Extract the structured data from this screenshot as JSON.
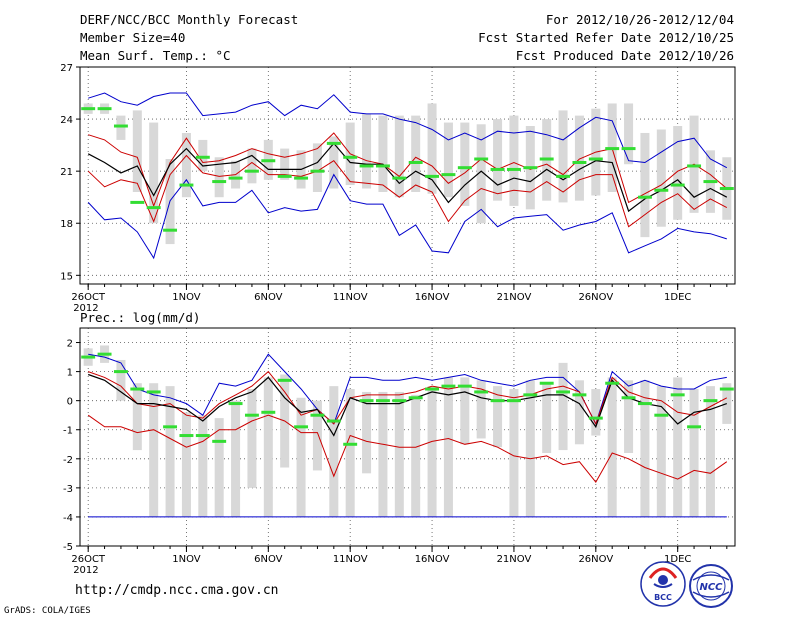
{
  "header": {
    "title": "DERF/NCC/BCC Monthly Forecast",
    "member": "Member Size=40",
    "variable": "Mean Surf. Temp.: °C",
    "period": "For 2012/10/26-2012/12/04",
    "started": "Fcst Started Refer Date 2012/10/25",
    "produced": "Fcst Produced Date 2012/10/26"
  },
  "footer": {
    "url": "http://cmdp.ncc.cma.gov.cn",
    "grads": "GrADS: COLA/IGES",
    "logo_bcc": "BCC",
    "logo_ncc": "NCC"
  },
  "colors": {
    "box": "#d8d8d8",
    "median": "#33dd33",
    "envelope": "#0000cc",
    "spread": "#cc0000",
    "mean": "#000000",
    "grid": "#555555"
  },
  "chart_data": [
    {
      "type": "box",
      "name": "temperature",
      "ylabel": "Mean Surf. Temp.: °C",
      "ylim": [
        14.5,
        27
      ],
      "yticks": [
        15,
        18,
        21,
        24,
        27
      ],
      "xlim": [
        0.5,
        40.5
      ],
      "xticks": [
        {
          "day": 1,
          "label": "26OCT",
          "sub": "2012"
        },
        {
          "day": 7,
          "label": "1NOV"
        },
        {
          "day": 12,
          "label": "6NOV"
        },
        {
          "day": 17,
          "label": "11NOV"
        },
        {
          "day": 22,
          "label": "16NOV"
        },
        {
          "day": 27,
          "label": "21NOV"
        },
        {
          "day": 32,
          "label": "26NOV"
        },
        {
          "day": 37,
          "label": "1DEC"
        }
      ],
      "days": [
        1,
        2,
        3,
        4,
        5,
        6,
        7,
        8,
        9,
        10,
        11,
        12,
        13,
        14,
        15,
        16,
        17,
        18,
        19,
        20,
        21,
        22,
        23,
        24,
        25,
        26,
        27,
        28,
        29,
        30,
        31,
        32,
        33,
        34,
        35,
        36,
        37,
        38,
        39,
        40
      ],
      "box_low": [
        24.3,
        24.3,
        22.8,
        19.8,
        18.0,
        16.8,
        19.5,
        21.0,
        19.5,
        20.0,
        20.3,
        20.5,
        20.5,
        20.0,
        19.8,
        20.0,
        20.2,
        20.0,
        19.8,
        19.5,
        19.8,
        19.7,
        19.5,
        19.0,
        18.0,
        19.3,
        19.0,
        18.8,
        19.3,
        19.2,
        19.3,
        19.6,
        19.8,
        21.4,
        17.2,
        17.8,
        18.2,
        18.6,
        18.6,
        18.2
      ],
      "box_high": [
        24.9,
        24.9,
        24.2,
        24.5,
        23.8,
        21.7,
        23.2,
        22.8,
        21.8,
        21.6,
        22.3,
        22.8,
        22.3,
        22.2,
        22.6,
        23.0,
        23.8,
        24.3,
        24.2,
        24.2,
        24.2,
        24.9,
        23.8,
        23.8,
        23.7,
        24.0,
        24.2,
        23.6,
        24.0,
        24.5,
        24.2,
        24.6,
        24.9,
        24.9,
        23.2,
        23.4,
        23.6,
        24.2,
        22.2,
        21.8
      ],
      "median": [
        24.6,
        24.6,
        23.6,
        19.2,
        18.9,
        17.6,
        20.2,
        21.8,
        20.4,
        20.6,
        21.0,
        21.6,
        20.7,
        20.6,
        21.0,
        22.6,
        21.8,
        21.3,
        21.3,
        20.6,
        21.5,
        20.7,
        20.8,
        21.2,
        21.7,
        21.1,
        21.1,
        21.2,
        21.7,
        20.7,
        21.5,
        21.7,
        22.3,
        22.3,
        19.5,
        19.9,
        20.2,
        21.3,
        20.4,
        20.0
      ],
      "envelope_high": [
        25.2,
        25.5,
        25.0,
        24.8,
        25.3,
        25.5,
        25.5,
        24.2,
        24.3,
        24.4,
        24.8,
        25.0,
        24.2,
        24.8,
        24.6,
        25.4,
        24.4,
        24.3,
        24.3,
        24.0,
        23.8,
        23.4,
        22.8,
        23.2,
        22.8,
        23.3,
        23.2,
        23.3,
        23.1,
        22.8,
        23.5,
        24.1,
        23.9,
        21.6,
        21.5,
        22.1,
        22.7,
        22.9,
        21.7,
        21.2
      ],
      "spread_high": [
        23.1,
        22.8,
        22.1,
        21.8,
        19.0,
        21.5,
        22.9,
        21.5,
        21.6,
        21.9,
        22.3,
        22.0,
        21.8,
        22.0,
        22.3,
        23.2,
        22.0,
        21.6,
        21.4,
        20.7,
        21.8,
        21.3,
        20.3,
        20.9,
        21.7,
        21.1,
        21.5,
        21.1,
        21.4,
        20.8,
        21.7,
        22.1,
        22.3,
        19.2,
        19.7,
        20.2,
        21.0,
        21.4,
        20.8,
        20.0
      ],
      "mean": [
        22.0,
        21.5,
        20.9,
        21.3,
        19.6,
        21.4,
        22.3,
        21.3,
        21.4,
        21.5,
        21.9,
        21.1,
        21.1,
        21.1,
        21.5,
        22.6,
        21.5,
        21.4,
        21.4,
        20.3,
        21.0,
        20.5,
        19.2,
        20.2,
        21.0,
        20.2,
        20.6,
        20.4,
        21.1,
        20.5,
        21.1,
        21.6,
        21.5,
        18.7,
        19.4,
        19.9,
        20.5,
        19.5,
        20.0,
        19.5
      ],
      "spread_low": [
        21.0,
        20.1,
        20.5,
        20.3,
        18.1,
        20.8,
        21.9,
        20.9,
        20.7,
        20.8,
        21.5,
        20.8,
        20.8,
        20.7,
        21.0,
        21.6,
        20.4,
        20.3,
        20.2,
        19.5,
        20.2,
        19.8,
        18.1,
        19.3,
        20.0,
        19.7,
        19.9,
        19.8,
        20.4,
        19.8,
        20.5,
        20.8,
        20.8,
        17.8,
        18.5,
        19.2,
        19.7,
        18.8,
        19.4,
        18.9
      ],
      "envelope_low": [
        19.2,
        18.2,
        18.3,
        17.5,
        16.0,
        19.3,
        20.5,
        19.0,
        19.2,
        19.2,
        19.9,
        18.6,
        18.9,
        18.7,
        18.8,
        20.8,
        19.3,
        19.1,
        19.1,
        17.3,
        17.9,
        16.4,
        16.3,
        18.1,
        18.8,
        17.8,
        18.3,
        18.4,
        18.5,
        17.6,
        17.9,
        18.1,
        18.6,
        16.3,
        16.7,
        17.1,
        17.7,
        17.5,
        17.4,
        17.1
      ]
    },
    {
      "type": "box",
      "name": "precipitation",
      "ylabel": "Prec.: log(mm/d)",
      "ylim": [
        -5,
        2.5
      ],
      "yticks": [
        -5,
        -4,
        -3,
        -2,
        -1,
        0,
        1,
        2
      ],
      "xlim": [
        0.5,
        40.5
      ],
      "xticks": [
        {
          "day": 1,
          "label": "26OCT",
          "sub": "2012"
        },
        {
          "day": 7,
          "label": "1NOV"
        },
        {
          "day": 12,
          "label": "6NOV"
        },
        {
          "day": 17,
          "label": "11NOV"
        },
        {
          "day": 22,
          "label": "16NOV"
        },
        {
          "day": 27,
          "label": "21NOV"
        },
        {
          "day": 32,
          "label": "26NOV"
        },
        {
          "day": 37,
          "label": "1DEC"
        }
      ],
      "days": [
        1,
        2,
        3,
        4,
        5,
        6,
        7,
        8,
        9,
        10,
        11,
        12,
        13,
        14,
        15,
        16,
        17,
        18,
        19,
        20,
        21,
        22,
        23,
        24,
        25,
        26,
        27,
        28,
        29,
        30,
        31,
        32,
        33,
        34,
        35,
        36,
        37,
        38,
        39,
        40
      ],
      "box_low": [
        1.2,
        1.3,
        0.0,
        -1.7,
        -4.0,
        -4.0,
        -4.0,
        -4.0,
        -4.0,
        -4.0,
        -3.0,
        -4.0,
        -2.3,
        -4.0,
        -2.4,
        -4.0,
        -4.0,
        -2.5,
        -4.0,
        -4.0,
        -4.0,
        -4.0,
        -4.0,
        -1.5,
        -1.3,
        -1.6,
        -4.0,
        -4.0,
        -1.8,
        -1.7,
        -1.5,
        -1.2,
        -4.0,
        -1.8,
        -4.0,
        -4.0,
        -4.0,
        -4.0,
        -4.0,
        -0.8
      ],
      "box_high": [
        1.8,
        1.9,
        1.4,
        0.6,
        0.6,
        0.5,
        -0.4,
        -0.5,
        -0.6,
        0.0,
        0.4,
        0.8,
        0.9,
        0.1,
        0.0,
        0.5,
        0.4,
        0.3,
        0.3,
        0.3,
        0.2,
        0.5,
        0.8,
        0.8,
        0.7,
        0.5,
        0.4,
        0.7,
        0.6,
        1.3,
        0.7,
        0.4,
        0.8,
        0.7,
        0.7,
        0.5,
        0.8,
        0.4,
        0.5,
        0.6
      ],
      "median": [
        1.5,
        1.6,
        1.0,
        0.4,
        0.3,
        -0.9,
        -1.2,
        -1.2,
        -1.4,
        -0.1,
        -0.5,
        -0.4,
        0.7,
        -0.9,
        -0.5,
        -0.7,
        -1.5,
        0.0,
        0.0,
        0.0,
        0.1,
        0.4,
        0.5,
        0.5,
        0.3,
        0.0,
        0.0,
        0.2,
        0.6,
        0.3,
        0.2,
        -0.6,
        0.6,
        0.1,
        -0.1,
        -0.5,
        0.2,
        -0.9,
        0.0,
        0.4
      ],
      "envelope_high": [
        1.6,
        1.5,
        1.3,
        0.4,
        0.2,
        0.1,
        -0.1,
        -0.5,
        0.6,
        0.5,
        0.7,
        1.6,
        1.0,
        0.4,
        -0.3,
        -0.8,
        0.8,
        0.8,
        0.7,
        0.7,
        0.8,
        0.7,
        0.8,
        0.9,
        0.7,
        0.6,
        0.5,
        0.7,
        0.8,
        0.8,
        0.3,
        -0.8,
        1.0,
        0.5,
        0.7,
        0.5,
        0.4,
        0.4,
        0.7,
        0.8
      ],
      "spread_high": [
        1.0,
        0.8,
        0.5,
        -0.1,
        -0.2,
        -0.1,
        -0.5,
        -0.6,
        -0.1,
        0.2,
        0.5,
        1.0,
        0.3,
        -0.5,
        -0.3,
        -0.8,
        0.1,
        0.2,
        0.2,
        0.2,
        0.3,
        0.5,
        0.4,
        0.5,
        0.4,
        0.2,
        0.1,
        0.2,
        0.4,
        0.5,
        0.3,
        -0.8,
        0.8,
        0.3,
        0.1,
        0.0,
        -0.4,
        -0.5,
        -0.2,
        0.1
      ],
      "mean": [
        0.9,
        0.7,
        0.3,
        -0.1,
        -0.1,
        -0.2,
        -0.3,
        -0.7,
        -0.2,
        0.1,
        0.3,
        0.8,
        0.1,
        -0.4,
        -0.3,
        -1.2,
        0.1,
        -0.1,
        -0.1,
        -0.1,
        0.1,
        0.3,
        0.2,
        0.3,
        0.1,
        0.0,
        0.0,
        0.1,
        0.2,
        0.2,
        -0.1,
        -0.9,
        0.7,
        0.1,
        -0.1,
        -0.2,
        -0.8,
        -0.4,
        -0.3,
        -0.1
      ],
      "spread_low": [
        -0.5,
        -0.9,
        -0.9,
        -1.1,
        -1.0,
        -1.3,
        -1.6,
        -1.4,
        -1.0,
        -1.0,
        -0.7,
        -0.5,
        -0.7,
        -1.1,
        -1.1,
        -2.6,
        -1.2,
        -1.4,
        -1.5,
        -1.6,
        -1.6,
        -1.4,
        -1.3,
        -1.5,
        -1.4,
        -1.6,
        -1.9,
        -2.0,
        -1.9,
        -2.2,
        -2.1,
        -2.8,
        -1.8,
        -2.0,
        -2.3,
        -2.5,
        -2.7,
        -2.4,
        -2.5,
        -2.1
      ],
      "envelope_low": [
        -4.0,
        -4.0,
        -4.0,
        -4.0,
        -4.0,
        -4.0,
        -4.0,
        -4.0,
        -4.0,
        -4.0,
        -4.0,
        -4.0,
        -4.0,
        -4.0,
        -4.0,
        -4.0,
        -4.0,
        -4.0,
        -4.0,
        -4.0,
        -4.0,
        -4.0,
        -4.0,
        -4.0,
        -4.0,
        -4.0,
        -4.0,
        -4.0,
        -4.0,
        -4.0,
        -4.0,
        -4.0,
        -4.0,
        -4.0,
        -4.0,
        -4.0,
        -4.0,
        -4.0,
        -4.0,
        -4.0
      ]
    }
  ]
}
